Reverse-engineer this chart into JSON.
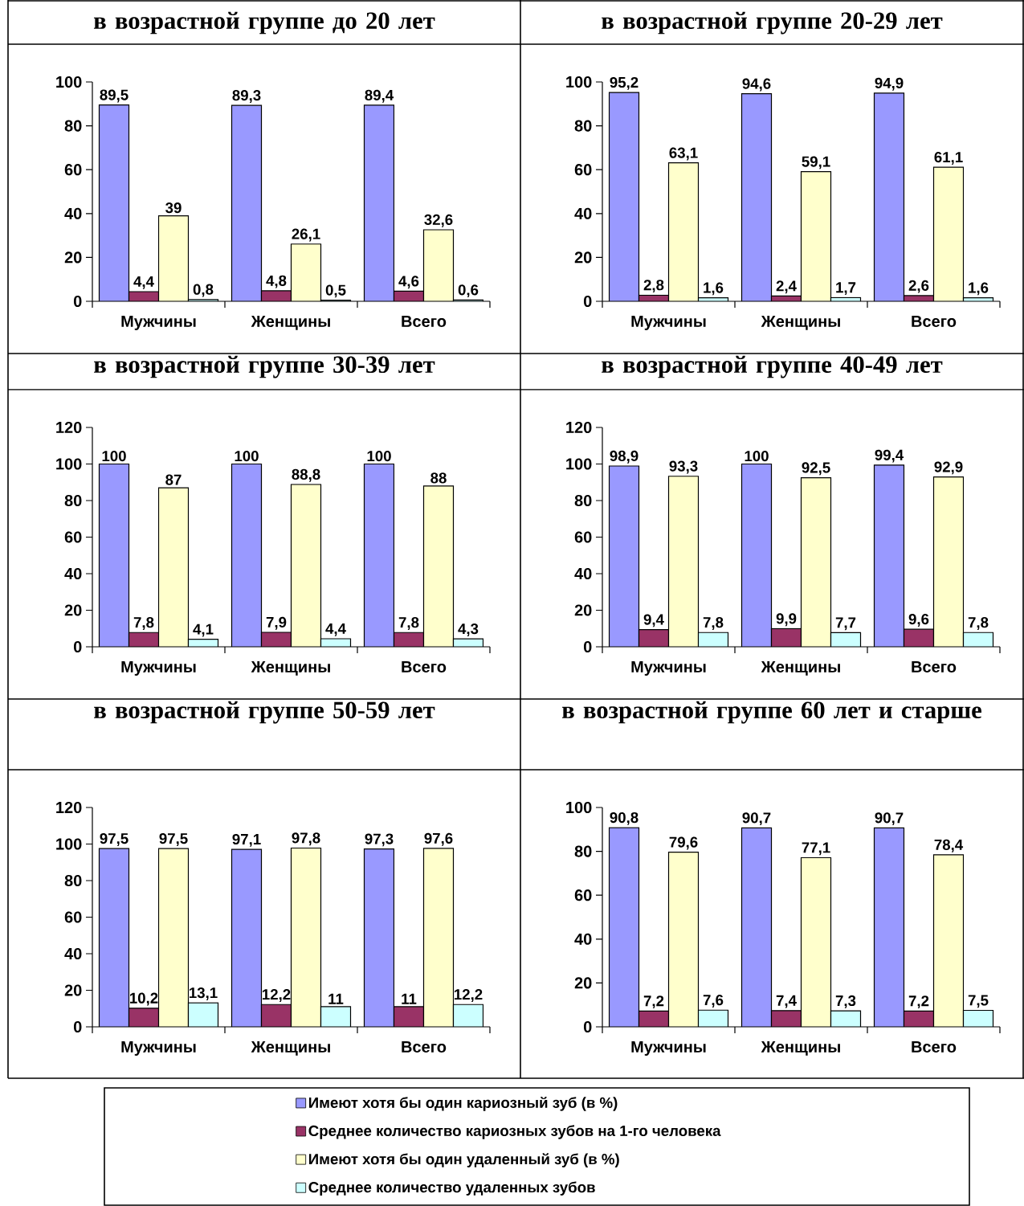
{
  "chart_data": [
    {
      "type": "bar",
      "title": "в возрастной группе до 20 лет",
      "categories": [
        "Мужчины",
        "Женщины",
        "Всего"
      ],
      "ylim": [
        0,
        100
      ],
      "yticks": [
        0,
        20,
        40,
        60,
        80,
        100
      ],
      "legend": "bottom",
      "series": [
        {
          "name": "Имеют хотя бы один кариозный зуб (в %)",
          "color": "#9999ff",
          "values": [
            89.5,
            89.3,
            89.4
          ],
          "value_labels": [
            "89,5",
            "89,3",
            "89,4"
          ]
        },
        {
          "name": "Среднее количество кариозных зубов на 1-го человека",
          "color": "#993366",
          "values": [
            4.4,
            4.8,
            4.6
          ],
          "value_labels": [
            "4,4",
            "4,8",
            "4,6"
          ]
        },
        {
          "name": "Имеют хотя бы один удаленный зуб (в %)",
          "color": "#ffffcc",
          "values": [
            39,
            26.1,
            32.6
          ],
          "value_labels": [
            "39",
            "26,1",
            "32,6"
          ]
        },
        {
          "name": "Среднее количество удаленных зубов",
          "color": "#ccffff",
          "values": [
            0.8,
            0.5,
            0.6
          ],
          "value_labels": [
            "0,8",
            "0,5",
            "0,6"
          ]
        }
      ]
    },
    {
      "type": "bar",
      "title": "в возрастной группе 20-29 лет",
      "categories": [
        "Мужчины",
        "Женщины",
        "Всего"
      ],
      "ylim": [
        0,
        100
      ],
      "yticks": [
        0,
        20,
        40,
        60,
        80,
        100
      ],
      "series": [
        {
          "color": "#9999ff",
          "values": [
            95.2,
            94.6,
            94.9
          ],
          "value_labels": [
            "95,2",
            "94,6",
            "94,9"
          ]
        },
        {
          "color": "#993366",
          "values": [
            2.8,
            2.4,
            2.6
          ],
          "value_labels": [
            "2,8",
            "2,4",
            "2,6"
          ]
        },
        {
          "color": "#ffffcc",
          "values": [
            63.1,
            59.1,
            61.1
          ],
          "value_labels": [
            "63,1",
            "59,1",
            "61,1"
          ]
        },
        {
          "color": "#ccffff",
          "values": [
            1.6,
            1.7,
            1.6
          ],
          "value_labels": [
            "1,6",
            "1,7",
            "1,6"
          ]
        }
      ]
    },
    {
      "type": "bar",
      "title": "в возрастной группе 30-39 лет",
      "categories": [
        "Мужчины",
        "Женщины",
        "Всего"
      ],
      "ylim": [
        0,
        120
      ],
      "yticks": [
        0,
        20,
        40,
        60,
        80,
        100,
        120
      ],
      "series": [
        {
          "color": "#9999ff",
          "values": [
            100,
            100,
            100
          ],
          "value_labels": [
            "100",
            "100",
            "100"
          ]
        },
        {
          "color": "#993366",
          "values": [
            7.8,
            7.9,
            7.8
          ],
          "value_labels": [
            "7,8",
            "7,9",
            "7,8"
          ]
        },
        {
          "color": "#ffffcc",
          "values": [
            87,
            88.8,
            88
          ],
          "value_labels": [
            "87",
            "88,8",
            "88"
          ]
        },
        {
          "color": "#ccffff",
          "values": [
            4.1,
            4.4,
            4.3
          ],
          "value_labels": [
            "4,1",
            "4,4",
            "4,3"
          ]
        }
      ]
    },
    {
      "type": "bar",
      "title": "в возрастной группе 40-49 лет",
      "categories": [
        "Мужчины",
        "Женщины",
        "Всего"
      ],
      "ylim": [
        0,
        120
      ],
      "yticks": [
        0,
        20,
        40,
        60,
        80,
        100,
        120
      ],
      "series": [
        {
          "color": "#9999ff",
          "values": [
            98.9,
            100,
            99.4
          ],
          "value_labels": [
            "98,9",
            "100",
            "99,4"
          ]
        },
        {
          "color": "#993366",
          "values": [
            9.4,
            9.9,
            9.6
          ],
          "value_labels": [
            "9,4",
            "9,9",
            "9,6"
          ]
        },
        {
          "color": "#ffffcc",
          "values": [
            93.3,
            92.5,
            92.9
          ],
          "value_labels": [
            "93,3",
            "92,5",
            "92,9"
          ]
        },
        {
          "color": "#ccffff",
          "values": [
            7.8,
            7.7,
            7.8
          ],
          "value_labels": [
            "7,8",
            "7,7",
            "7,8"
          ]
        }
      ]
    },
    {
      "type": "bar",
      "title": "в возрастной группе 50-59 лет",
      "categories": [
        "Мужчины",
        "Женщины",
        "Всего"
      ],
      "ylim": [
        0,
        120
      ],
      "yticks": [
        0,
        20,
        40,
        60,
        80,
        100,
        120
      ],
      "series": [
        {
          "color": "#9999ff",
          "values": [
            97.5,
            97.1,
            97.3
          ],
          "value_labels": [
            "97,5",
            "97,1",
            "97,3"
          ]
        },
        {
          "color": "#993366",
          "values": [
            10.2,
            12.2,
            11
          ],
          "value_labels": [
            "10,2",
            "12,2",
            "11"
          ]
        },
        {
          "color": "#ffffcc",
          "values": [
            97.5,
            97.8,
            97.6
          ],
          "value_labels": [
            "97,5",
            "97,8",
            "97,6"
          ]
        },
        {
          "color": "#ccffff",
          "values": [
            13.1,
            11,
            12.2
          ],
          "value_labels": [
            "13,1",
            "11",
            "12,2"
          ]
        }
      ]
    },
    {
      "type": "bar",
      "title": "в возрастной группе 60 лет и старше",
      "categories": [
        "Мужчины",
        "Женщины",
        "Всего"
      ],
      "ylim": [
        0,
        100
      ],
      "yticks": [
        0,
        20,
        40,
        60,
        80,
        100
      ],
      "series": [
        {
          "color": "#9999ff",
          "values": [
            90.8,
            90.7,
            90.7
          ],
          "value_labels": [
            "90,8",
            "90,7",
            "90,7"
          ]
        },
        {
          "color": "#993366",
          "values": [
            7.2,
            7.4,
            7.2
          ],
          "value_labels": [
            "7,2",
            "7,4",
            "7,2"
          ]
        },
        {
          "color": "#ffffcc",
          "values": [
            79.6,
            77.1,
            78.4
          ],
          "value_labels": [
            "79,6",
            "77,1",
            "78,4"
          ]
        },
        {
          "color": "#ccffff",
          "values": [
            7.6,
            7.3,
            7.5
          ],
          "value_labels": [
            "7,6",
            "7,3",
            "7,5"
          ]
        }
      ]
    }
  ]
}
